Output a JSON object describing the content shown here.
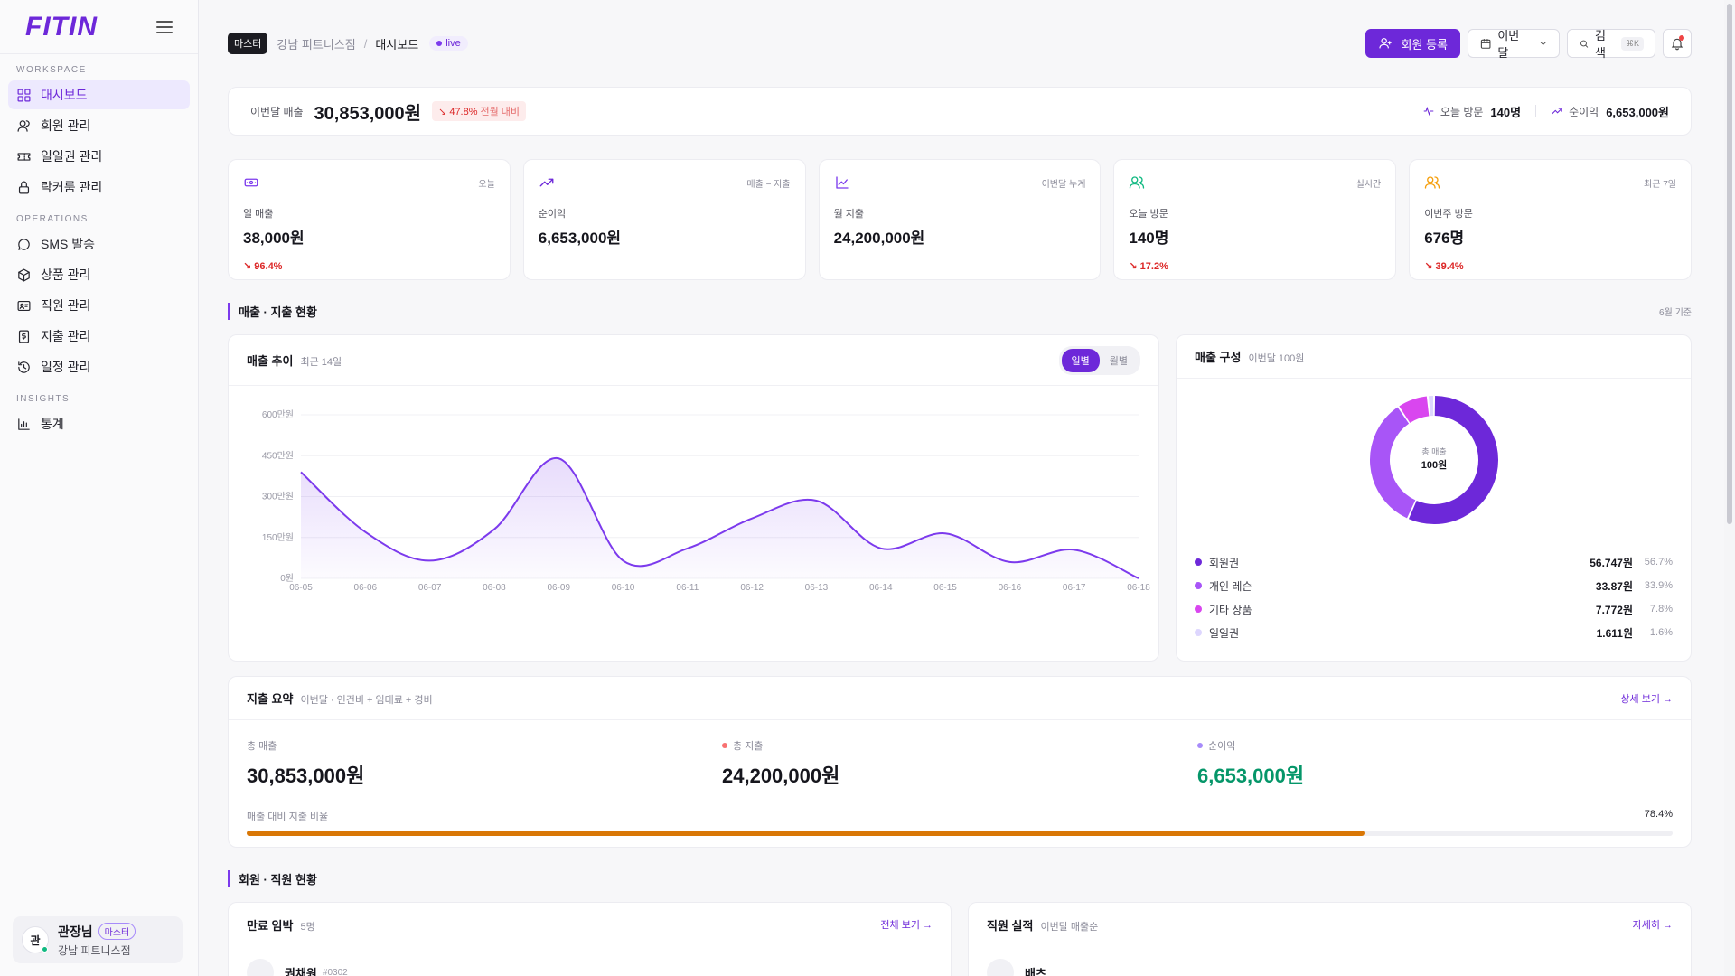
{
  "app": {
    "logo": "FITIN",
    "sidebar": {
      "sections": [
        {
          "label": "WORKSPACE",
          "items": [
            {
              "label": "대시보드",
              "icon": "grid-icon",
              "active": true
            },
            {
              "label": "회원 관리",
              "icon": "user-icon"
            },
            {
              "label": "일일권 관리",
              "icon": "ticket-icon"
            },
            {
              "label": "락커룸 관리",
              "icon": "lock-icon"
            }
          ]
        },
        {
          "label": "OPERATIONS",
          "items": [
            {
              "label": "SMS 발송",
              "icon": "chat-bubble-icon"
            },
            {
              "label": "상품 관리",
              "icon": "box-icon"
            },
            {
              "label": "직원 관리",
              "icon": "id-card-icon"
            },
            {
              "label": "지출 관리",
              "icon": "dollar-receipt-icon"
            },
            {
              "label": "일정 관리",
              "icon": "history-clock-icon"
            }
          ]
        },
        {
          "label": "INSIGHTS",
          "items": [
            {
              "label": "통계",
              "icon": "bar-chart-icon"
            }
          ]
        }
      ],
      "user": {
        "avatar": "관",
        "name": "관장님",
        "role": "마스터",
        "branch": "강남 피트니스점"
      }
    }
  },
  "header": {
    "badge": "마스터",
    "branch": "강남 피트니스점",
    "separator": "/",
    "page": "대시보드",
    "live": "live",
    "register_button": "회원 등록",
    "period_button": "이번달",
    "search_label": "검색",
    "search_shortcut": "⌘K"
  },
  "summary": {
    "label": "이번달 매출",
    "value": "30,853,000원",
    "delta": "↘ 47.8%",
    "delta_note": "전월 대비",
    "visits_label": "오늘 방문",
    "visits_value": "140명",
    "profit_label": "순이익",
    "profit_value": "6,653,000원"
  },
  "stats": [
    {
      "icon": "ticket-icon",
      "color": "#7c3aed",
      "tag": "오늘",
      "label": "일 매출",
      "value": "38,000원",
      "delta": "↘ 96.4%"
    },
    {
      "icon": "trend-up-icon",
      "color": "#6d28d9",
      "tag": "매출 − 지출",
      "label": "순이익",
      "value": "6,653,000원",
      "delta": ""
    },
    {
      "icon": "line-chart-icon",
      "color": "#7c3aed",
      "tag": "이번달 누계",
      "label": "월 지출",
      "value": "24,200,000원",
      "delta": ""
    },
    {
      "icon": "users-icon",
      "color": "#10b981",
      "tag": "실시간",
      "label": "오늘 방문",
      "value": "140명",
      "delta": "↘ 17.2%"
    },
    {
      "icon": "users-icon",
      "color": "#f59e0b",
      "tag": "최근 7일",
      "label": "이번주 방문",
      "value": "676명",
      "delta": "↘ 39.4%"
    }
  ],
  "section1": {
    "title": "매출 · 지출 현황",
    "right": "6월 기준"
  },
  "trend": {
    "title": "매출 추이",
    "subtitle": "최근 14일",
    "toggle": [
      "일별",
      "월별"
    ]
  },
  "chart_data": {
    "type": "area",
    "categories": [
      "06-05",
      "06-06",
      "06-07",
      "06-08",
      "06-09",
      "06-10",
      "06-11",
      "06-12",
      "06-13",
      "06-14",
      "06-15",
      "06-16",
      "06-17",
      "06-18"
    ],
    "values": [
      3900000,
      1700000,
      650000,
      1800000,
      4400000,
      650000,
      1100000,
      2200000,
      2850000,
      1100000,
      1650000,
      600000,
      1050000,
      0
    ],
    "ylim": [
      0,
      6000000
    ],
    "yticks": [
      {
        "v": 6000000,
        "label": "600만원"
      },
      {
        "v": 4500000,
        "label": "450만원"
      },
      {
        "v": 3000000,
        "label": "300만원"
      },
      {
        "v": 1500000,
        "label": "150만원"
      },
      {
        "v": 0,
        "label": "0원"
      }
    ],
    "grid": true,
    "color": "#7c3aed"
  },
  "composition": {
    "title": "매출 구성",
    "subtitle": "이번달 100원",
    "center_label": "총 매출",
    "center_value": "100원",
    "items": [
      {
        "name": "회원권",
        "value": "56.747원",
        "pct": "56.7%",
        "share": 56.7,
        "color": "#6d28d9"
      },
      {
        "name": "개인 레슨",
        "value": "33.87원",
        "pct": "33.9%",
        "share": 33.9,
        "color": "#a855f7"
      },
      {
        "name": "기타 상품",
        "value": "7.772원",
        "pct": "7.8%",
        "share": 7.8,
        "color": "#d946ef"
      },
      {
        "name": "일일권",
        "value": "1.611원",
        "pct": "1.6%",
        "share": 1.6,
        "color": "#ddd6fe"
      }
    ]
  },
  "expense": {
    "title": "지출 요약",
    "subtitle": "이번달 · 인건비 + 임대료 + 경비",
    "link": "상세 보기 →",
    "cols": [
      {
        "label": "총 매출",
        "value": "30,853,000원",
        "dot": "",
        "color": "#16161d"
      },
      {
        "label": "총 지출",
        "value": "24,200,000원",
        "dot": "#f87171",
        "color": "#16161d"
      },
      {
        "label": "순이익",
        "value": "6,653,000원",
        "dot": "#a78bfa",
        "color": "#059669"
      }
    ],
    "ratio_label": "매출 대비 지출 비율",
    "ratio_value": "78.4%",
    "ratio": 78.4
  },
  "section2": {
    "title": "회원 · 직원 현황"
  },
  "expiring": {
    "title": "만료 임박",
    "count": "5명",
    "link": "전체 보기 →",
    "first_name": "권채원",
    "first_id": "#0302"
  },
  "staff": {
    "title": "직원 실적",
    "subtitle": "이번달 매출순",
    "link": "자세히 →",
    "first_name": "배츠"
  }
}
